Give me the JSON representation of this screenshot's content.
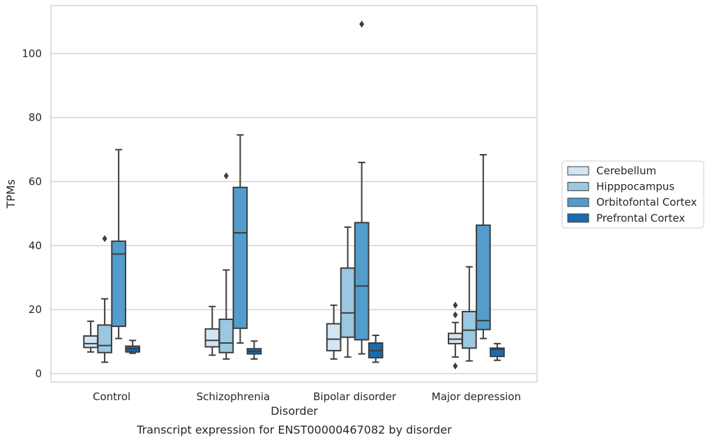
{
  "chart_data": {
    "type": "box",
    "title": "",
    "caption": "Transcript expression for ENST00000467082 by disorder",
    "xlabel": "Disorder",
    "ylabel": "TPMs",
    "ylim": [
      -2.6,
      115
    ],
    "yticks": [
      0,
      20,
      40,
      60,
      80,
      100
    ],
    "grid": "horizontal",
    "legend_position": "right",
    "categories": [
      "Control",
      "Schizophrenia",
      "Bipolar disorder",
      "Major depression"
    ],
    "series": [
      {
        "name": "Cerebellum",
        "color": "#d3e4f3",
        "boxes": [
          {
            "whisker_low": 6.8,
            "q1": 8.2,
            "median": 9.4,
            "q3": 11.8,
            "whisker_high": 16.4,
            "outliers": []
          },
          {
            "whisker_low": 5.8,
            "q1": 8.4,
            "median": 10.4,
            "q3": 14.0,
            "whisker_high": 21.0,
            "outliers": []
          },
          {
            "whisker_low": 4.6,
            "q1": 7.2,
            "median": 10.8,
            "q3": 15.6,
            "whisker_high": 21.4,
            "outliers": []
          },
          {
            "whisker_low": 5.2,
            "q1": 9.4,
            "median": 10.8,
            "q3": 12.6,
            "whisker_high": 16.0,
            "outliers": [
              21.4,
              18.4,
              2.4
            ]
          }
        ]
      },
      {
        "name": "Hipppocampus",
        "color": "#9ac8e0",
        "boxes": [
          {
            "whisker_low": 3.6,
            "q1": 6.6,
            "median": 8.8,
            "q3": 15.2,
            "whisker_high": 23.4,
            "outliers": [
              42.2
            ]
          },
          {
            "whisker_low": 4.6,
            "q1": 6.6,
            "median": 9.6,
            "q3": 17.0,
            "whisker_high": 32.4,
            "outliers": [
              61.8
            ]
          },
          {
            "whisker_low": 5.2,
            "q1": 11.4,
            "median": 19.0,
            "q3": 33.0,
            "whisker_high": 45.8,
            "outliers": []
          },
          {
            "whisker_low": 4.0,
            "q1": 8.0,
            "median": 13.6,
            "q3": 19.4,
            "whisker_high": 33.4,
            "outliers": []
          }
        ]
      },
      {
        "name": "Orbitofontal Cortex",
        "color": "#529dcc",
        "boxes": [
          {
            "whisker_low": 11.0,
            "q1": 14.8,
            "median": 37.4,
            "q3": 41.4,
            "whisker_high": 70.0,
            "outliers": []
          },
          {
            "whisker_low": 9.6,
            "q1": 14.2,
            "median": 44.0,
            "q3": 58.2,
            "whisker_high": 74.6,
            "outliers": []
          },
          {
            "whisker_low": 6.2,
            "q1": 10.6,
            "median": 27.4,
            "q3": 47.2,
            "whisker_high": 66.0,
            "outliers": [
              109.2
            ]
          },
          {
            "whisker_low": 11.0,
            "q1": 13.8,
            "median": 16.6,
            "q3": 46.4,
            "whisker_high": 68.4,
            "outliers": []
          }
        ]
      },
      {
        "name": "Prefrontal Cortex",
        "color": "#1c6aaf",
        "boxes": [
          {
            "whisker_low": 6.4,
            "q1": 6.8,
            "median": 7.8,
            "q3": 8.6,
            "whisker_high": 10.4,
            "outliers": []
          },
          {
            "whisker_low": 4.6,
            "q1": 6.2,
            "median": 7.0,
            "q3": 7.8,
            "whisker_high": 10.2,
            "outliers": []
          },
          {
            "whisker_low": 3.6,
            "q1": 5.0,
            "median": 7.2,
            "q3": 9.6,
            "whisker_high": 12.0,
            "outliers": []
          },
          {
            "whisker_low": 4.2,
            "q1": 5.4,
            "median": 7.6,
            "q3": 8.0,
            "whisker_high": 9.4,
            "outliers": []
          }
        ]
      }
    ]
  }
}
